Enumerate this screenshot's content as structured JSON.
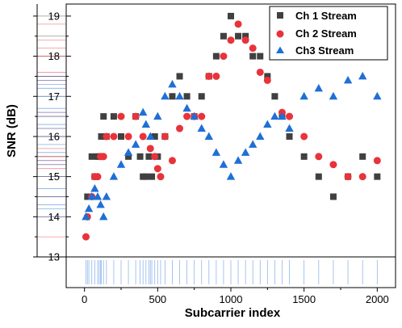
{
  "chart_data": {
    "type": "scatter",
    "xlabel": "Subcarrier index",
    "ylabel": "SNR (dB)",
    "xlim": [
      -125,
      2125
    ],
    "ylim": [
      13,
      19.3
    ],
    "x_ticks": [
      0,
      500,
      1000,
      1500,
      2000
    ],
    "y_ticks": [
      13,
      14,
      15,
      16,
      17,
      18,
      19
    ],
    "grid": false,
    "legend_position": "top-right",
    "marginal_rugs": [
      "left",
      "bottom"
    ],
    "series": [
      {
        "name": "Ch 1 Stream",
        "marker": "square",
        "color": "#404040",
        "points": [
          [
            20,
            14.5
          ],
          [
            50,
            15.5
          ],
          [
            70,
            15.0
          ],
          [
            90,
            15.5
          ],
          [
            100,
            15.5
          ],
          [
            115,
            16.0
          ],
          [
            130,
            16.5
          ],
          [
            150,
            16.0
          ],
          [
            200,
            16.5
          ],
          [
            250,
            16.0
          ],
          [
            300,
            15.5
          ],
          [
            350,
            16.5
          ],
          [
            380,
            15.5
          ],
          [
            400,
            15.0
          ],
          [
            420,
            15.0
          ],
          [
            440,
            15.5
          ],
          [
            460,
            15.0
          ],
          [
            480,
            16.0
          ],
          [
            500,
            15.5
          ],
          [
            550,
            16.0
          ],
          [
            600,
            17.0
          ],
          [
            650,
            17.5
          ],
          [
            700,
            17.0
          ],
          [
            750,
            16.5
          ],
          [
            800,
            17.0
          ],
          [
            850,
            17.5
          ],
          [
            900,
            18.0
          ],
          [
            950,
            18.5
          ],
          [
            1000,
            19.0
          ],
          [
            1050,
            18.5
          ],
          [
            1100,
            18.5
          ],
          [
            1150,
            18.0
          ],
          [
            1200,
            18.0
          ],
          [
            1250,
            17.5
          ],
          [
            1300,
            17.0
          ],
          [
            1350,
            16.5
          ],
          [
            1400,
            16.0
          ],
          [
            1500,
            15.5
          ],
          [
            1600,
            15.0
          ],
          [
            1700,
            14.5
          ],
          [
            1800,
            15.0
          ],
          [
            1900,
            15.5
          ],
          [
            2000,
            15.0
          ]
        ]
      },
      {
        "name": "Ch 2 Stream",
        "marker": "circle",
        "color": "#e8333a",
        "points": [
          [
            10,
            13.5
          ],
          [
            20,
            14.0
          ],
          [
            50,
            14.5
          ],
          [
            70,
            15.0
          ],
          [
            90,
            15.0
          ],
          [
            110,
            15.5
          ],
          [
            130,
            15.5
          ],
          [
            150,
            16.0
          ],
          [
            200,
            16.0
          ],
          [
            250,
            16.5
          ],
          [
            300,
            16.0
          ],
          [
            350,
            16.5
          ],
          [
            400,
            16.0
          ],
          [
            450,
            15.7
          ],
          [
            480,
            15.5
          ],
          [
            500,
            15.2
          ],
          [
            520,
            15.0
          ],
          [
            550,
            16.0
          ],
          [
            600,
            15.4
          ],
          [
            650,
            16.2
          ],
          [
            700,
            16.5
          ],
          [
            750,
            16.5
          ],
          [
            800,
            16.5
          ],
          [
            850,
            17.5
          ],
          [
            900,
            17.5
          ],
          [
            950,
            18.0
          ],
          [
            1000,
            18.4
          ],
          [
            1050,
            18.8
          ],
          [
            1100,
            18.4
          ],
          [
            1150,
            18.2
          ],
          [
            1200,
            17.6
          ],
          [
            1250,
            17.4
          ],
          [
            1350,
            16.6
          ],
          [
            1400,
            16.5
          ],
          [
            1500,
            16.0
          ],
          [
            1600,
            15.5
          ],
          [
            1700,
            15.3
          ],
          [
            1800,
            15.0
          ],
          [
            1900,
            15.0
          ],
          [
            2000,
            15.4
          ]
        ]
      },
      {
        "name": "Ch3 Stream",
        "marker": "triangle",
        "color": "#1f6fd6",
        "points": [
          [
            10,
            14.0
          ],
          [
            30,
            14.2
          ],
          [
            50,
            14.5
          ],
          [
            70,
            14.7
          ],
          [
            90,
            14.5
          ],
          [
            110,
            14.3
          ],
          [
            130,
            14.0
          ],
          [
            150,
            14.5
          ],
          [
            200,
            15.0
          ],
          [
            250,
            15.3
          ],
          [
            300,
            15.6
          ],
          [
            350,
            15.8
          ],
          [
            400,
            16.6
          ],
          [
            420,
            16.3
          ],
          [
            450,
            16.0
          ],
          [
            500,
            16.5
          ],
          [
            550,
            17.0
          ],
          [
            600,
            17.3
          ],
          [
            650,
            17.0
          ],
          [
            700,
            16.7
          ],
          [
            750,
            16.5
          ],
          [
            800,
            16.2
          ],
          [
            850,
            16.0
          ],
          [
            900,
            15.6
          ],
          [
            950,
            15.3
          ],
          [
            1000,
            15.0
          ],
          [
            1050,
            15.4
          ],
          [
            1100,
            15.6
          ],
          [
            1150,
            15.8
          ],
          [
            1200,
            16.0
          ],
          [
            1250,
            16.3
          ],
          [
            1300,
            16.5
          ],
          [
            1350,
            16.5
          ],
          [
            1400,
            16.2
          ],
          [
            1500,
            17.0
          ],
          [
            1600,
            17.2
          ],
          [
            1700,
            17.0
          ],
          [
            1800,
            17.4
          ],
          [
            1900,
            17.5
          ],
          [
            2000,
            17.0
          ]
        ]
      }
    ]
  }
}
